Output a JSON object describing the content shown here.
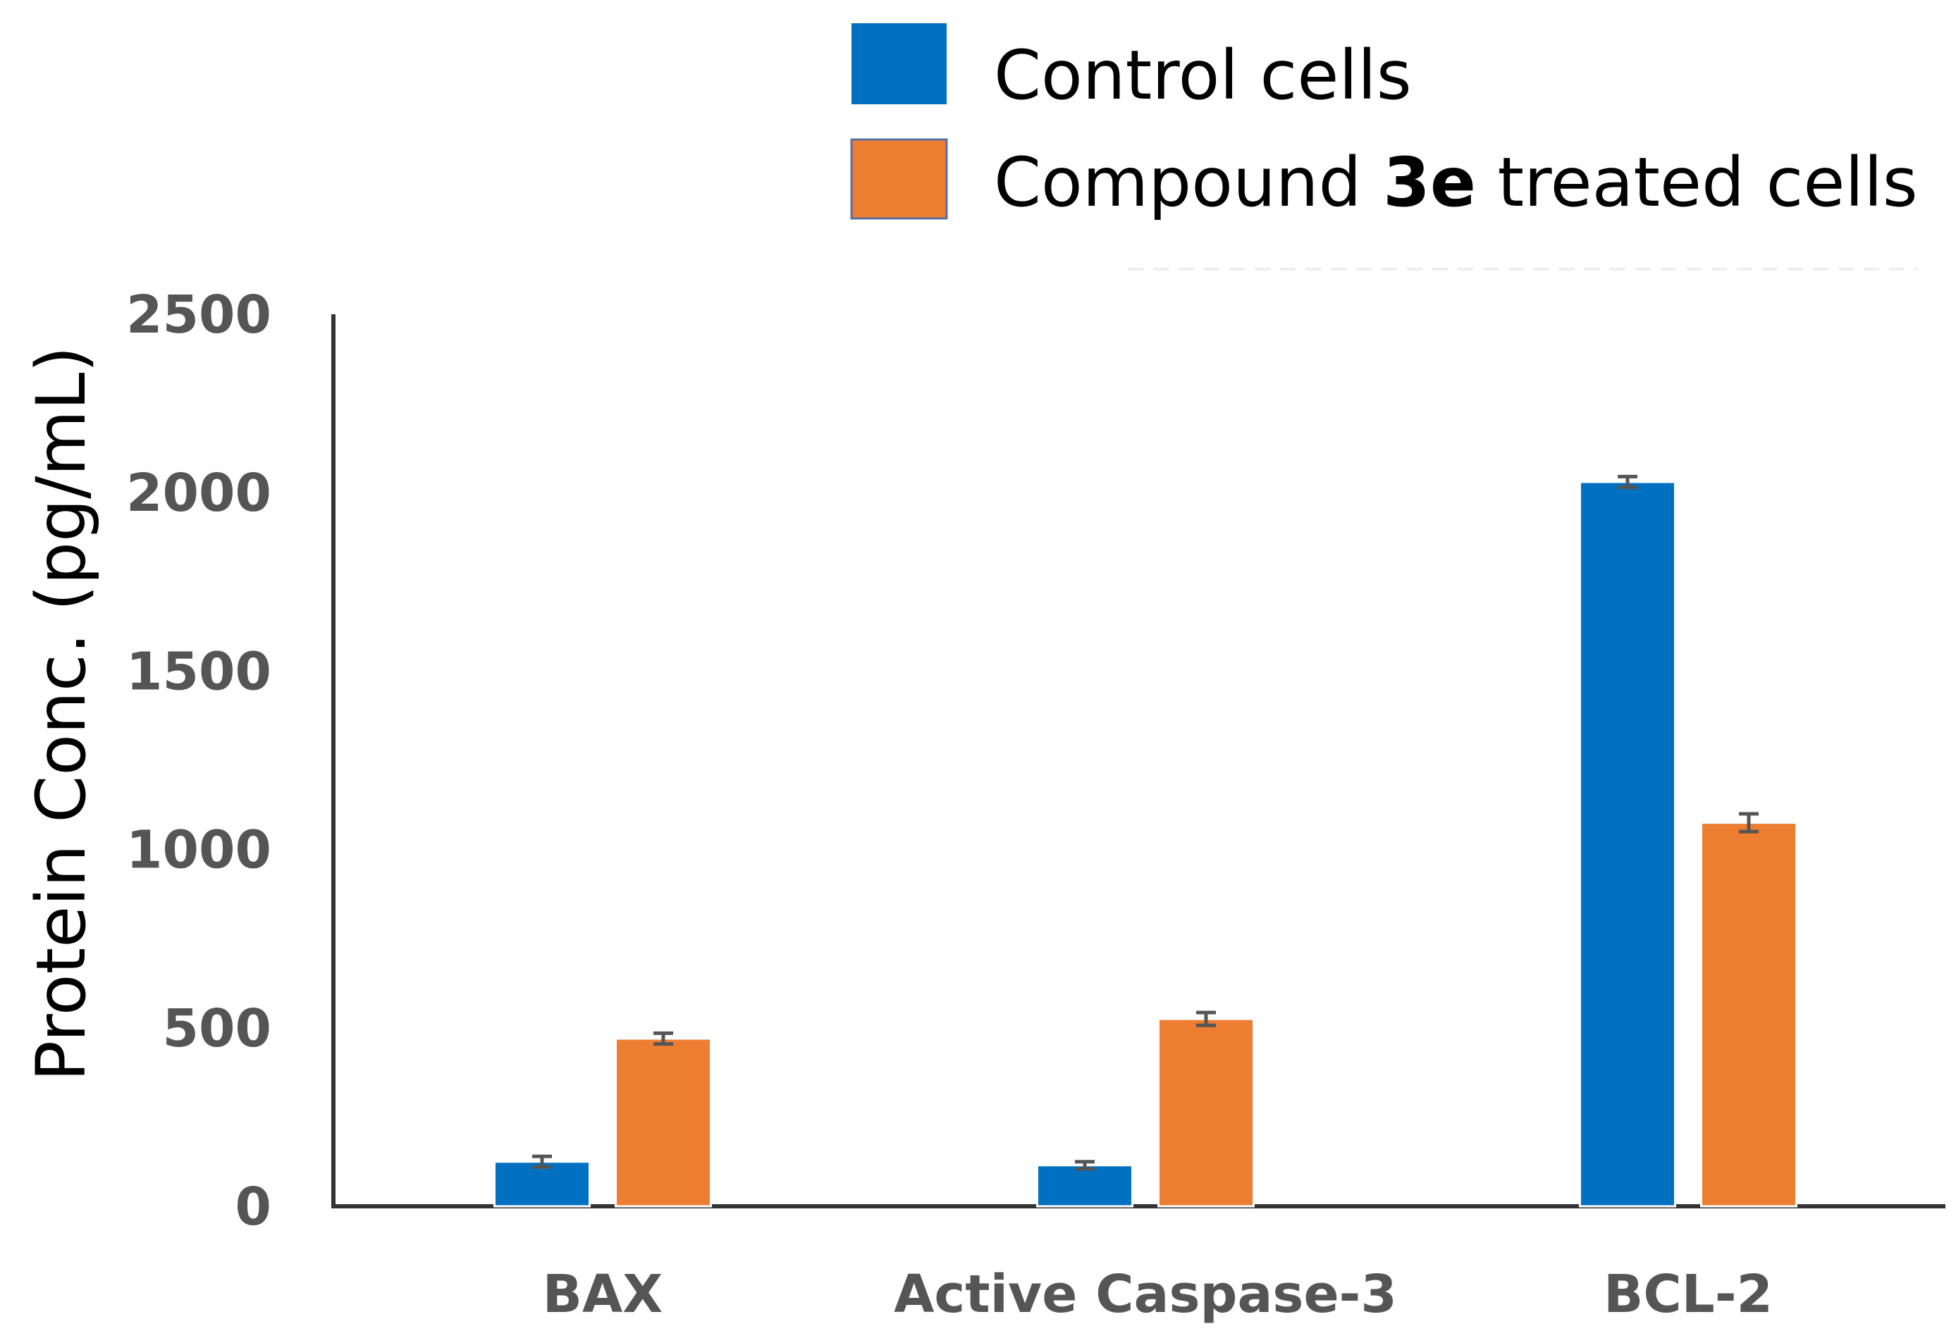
{
  "chart_data": {
    "type": "bar",
    "title": "",
    "xlabel": "",
    "ylabel": "Protein Conc. (pg/mL)",
    "ylim": [
      0,
      2500
    ],
    "yticks": [
      0,
      500,
      1000,
      1500,
      2000,
      2500
    ],
    "grid": false,
    "legend_position": "top-right",
    "categories": [
      "BAX",
      "Active Caspase-3",
      "BCL-2"
    ],
    "series": [
      {
        "name": "Control cells",
        "label_parts": [
          "Control cells"
        ],
        "color": "#0070C0",
        "values": [
          125,
          115,
          2030
        ],
        "errors": [
          15,
          10,
          15
        ]
      },
      {
        "name": "Compound 3e treated cells",
        "label_parts": [
          "Compound ",
          "3e",
          " treated cells"
        ],
        "color": "#ED7D31",
        "values": [
          470,
          525,
          1075
        ],
        "errors": [
          15,
          18,
          25
        ]
      }
    ]
  }
}
